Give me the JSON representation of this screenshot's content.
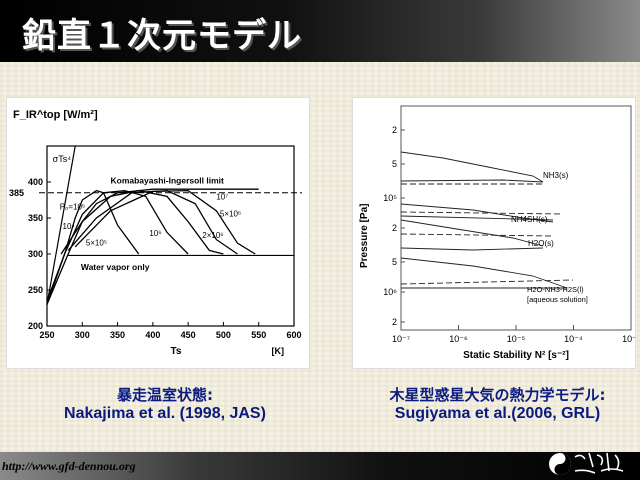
{
  "slide": {
    "title": "鉛直１次元モデル",
    "footer_url": "http://www.gfd-dennou.org"
  },
  "captions": {
    "left_jp": "暴走温室状態:",
    "left_en": "Nakajima et al. (1998, JAS)",
    "right_jp": "木星型惑星大気の熱力学モデル:",
    "right_en": "Sugiyama et al.(2006, GRL)"
  },
  "chart_data": [
    {
      "type": "line",
      "title": "",
      "ylabel": "F_IR^top [W/m²]",
      "xlabel": "Ts",
      "xunit": "[K]",
      "xlim": [
        250,
        600
      ],
      "ylim": [
        200,
        450
      ],
      "xticks": [
        250,
        300,
        350,
        400,
        450,
        500,
        550,
        600
      ],
      "yticks": [
        200,
        250,
        300,
        350,
        400
      ],
      "ytick_extra": "385",
      "annotations": {
        "sigma": "σTs⁴",
        "limit": "Komabayashi-Ingersoll limit",
        "water": "Water vapor  only",
        "p1": "P₀=10⁵",
        "p2": "10⁴",
        "p3": "5×10⁵",
        "p4": "10⁶",
        "p5": "2×10⁶",
        "p6": "5×10⁶",
        "p7": "10⁷"
      },
      "limit_value": 385,
      "series": [
        {
          "x": [
            250,
            280,
            300,
            320,
            350,
            400,
            450,
            500,
            550
          ],
          "y": [
            230,
            300,
            345,
            370,
            385,
            390,
            390,
            390,
            390
          ]
        },
        {
          "x": [
            250,
            275,
            290,
            300,
            320,
            330,
            350,
            380
          ],
          "y": [
            235,
            300,
            350,
            375,
            388,
            385,
            340,
            300
          ]
        },
        {
          "x": [
            250,
            275,
            300,
            330,
            360,
            390,
            420,
            450
          ],
          "y": [
            230,
            300,
            355,
            385,
            388,
            380,
            330,
            300
          ]
        },
        {
          "x": [
            270,
            300,
            340,
            380,
            420,
            450,
            480,
            500
          ],
          "y": [
            300,
            345,
            380,
            388,
            380,
            345,
            305,
            300
          ]
        },
        {
          "x": [
            280,
            320,
            370,
            420,
            460,
            490,
            520
          ],
          "y": [
            305,
            350,
            385,
            388,
            370,
            320,
            300
          ]
        },
        {
          "x": [
            290,
            340,
            400,
            450,
            490,
            520,
            545
          ],
          "y": [
            310,
            360,
            387,
            388,
            360,
            315,
            300
          ]
        }
      ]
    },
    {
      "type": "line",
      "title": "",
      "ylabel": "Pressure [Pa]",
      "xlabel": "Static Stability N² [s⁻²]",
      "xscale": "log",
      "yscale": "log",
      "xticks": [
        "10⁻⁷",
        "10⁻⁶",
        "10⁻⁵",
        "10⁻⁴",
        "10⁻³"
      ],
      "yticks": [
        "2",
        "5",
        "10⁵",
        "2",
        "5",
        "10⁶",
        "2"
      ],
      "labels": [
        "NH3(s)",
        "NH4SH(s)",
        "H2O(s)",
        "H2O-NH3-H2S(l)",
        "[aqueous solution]"
      ]
    }
  ]
}
